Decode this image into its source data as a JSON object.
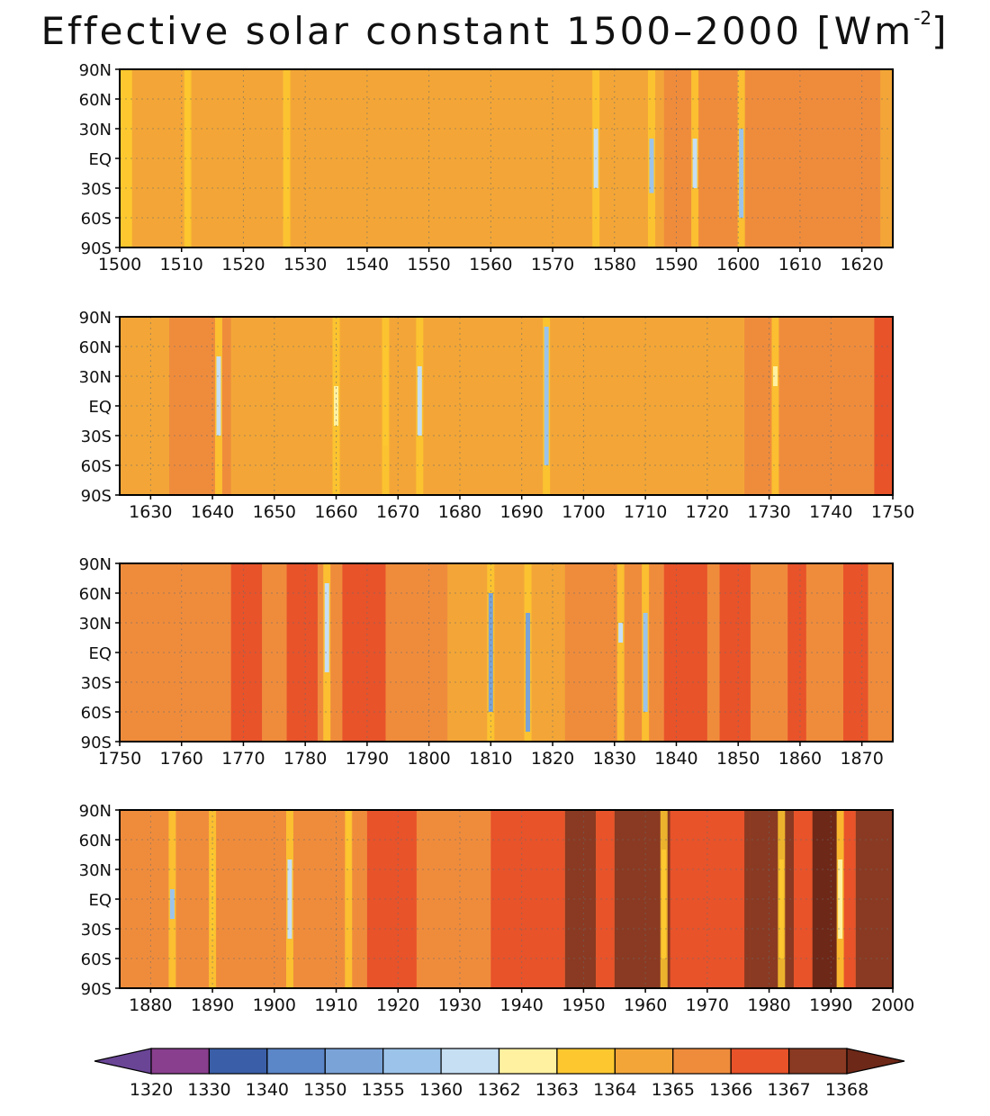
{
  "title": {
    "main": "Effective solar constant 1500–2000 [Wm",
    "unit_sup": "-2",
    "unit_close": "]"
  },
  "colors": {
    "levels": [
      "#6a4596",
      "#8a3f8e",
      "#3a5fa8",
      "#5b86c8",
      "#7aa3d8",
      "#9cc4ea",
      "#c6dff3",
      "#fff1a0",
      "#fdc82f",
      "#f3a637",
      "#ef8c3c",
      "#e8532a",
      "#8a3a22",
      "#6e2818"
    ],
    "frame": "#000000",
    "grid": "#6a6a6a"
  },
  "colorbar": {
    "labels": [
      "1320",
      "1330",
      "1340",
      "1350",
      "1355",
      "1360",
      "1362",
      "1363",
      "1364",
      "1365",
      "1366",
      "1367",
      "1368"
    ],
    "extend": "both"
  },
  "chart_data": [
    {
      "type": "heatmap",
      "x_range": [
        1500,
        1625
      ],
      "x_ticks": [
        1500,
        1510,
        1520,
        1530,
        1540,
        1550,
        1560,
        1570,
        1580,
        1590,
        1600,
        1610,
        1620
      ],
      "x_tick_labels": [
        "1500",
        "1510",
        "1520",
        "1530",
        "1540",
        "1550",
        "1560",
        "1570",
        "1580",
        "1590",
        "1600",
        "1610",
        "1620"
      ],
      "y_tick_labels": [
        "90N",
        "60N",
        "30N",
        "EQ",
        "30S",
        "60S",
        "90S"
      ],
      "y_range": [
        -90,
        90
      ],
      "grid": true,
      "base_value": 1364.5,
      "bands": [
        {
          "from": 1500,
          "to": 1502,
          "value": 1363.5
        },
        {
          "from": 1588,
          "to": 1623,
          "value": 1365.5
        },
        {
          "from": 1623,
          "to": 1625,
          "value": 1364.5
        }
      ],
      "events": [
        {
          "year": 1501,
          "lat_min": -60,
          "lat_max": 20,
          "value": 1363
        },
        {
          "year": 1511,
          "lat_min": -90,
          "lat_max": 90,
          "value": 1363.5
        },
        {
          "year": 1527,
          "lat_min": -60,
          "lat_max": 0,
          "value": 1363.5
        },
        {
          "year": 1577,
          "lat_min": -30,
          "lat_max": 30,
          "value": 1361
        },
        {
          "year": 1586,
          "lat_min": -35,
          "lat_max": 20,
          "value": 1359
        },
        {
          "year": 1593,
          "lat_min": -30,
          "lat_max": 20,
          "value": 1361
        },
        {
          "year": 1600.5,
          "lat_min": -60,
          "lat_max": 30,
          "value": 1359
        }
      ]
    },
    {
      "type": "heatmap",
      "x_range": [
        1625,
        1750
      ],
      "x_ticks": [
        1630,
        1640,
        1650,
        1660,
        1670,
        1680,
        1690,
        1700,
        1710,
        1720,
        1730,
        1740,
        1750
      ],
      "x_tick_labels": [
        "1630",
        "1640",
        "1650",
        "1660",
        "1670",
        "1680",
        "1690",
        "1700",
        "1710",
        "1720",
        "1730",
        "1740",
        "1750"
      ],
      "y_tick_labels": [
        "90N",
        "60N",
        "30N",
        "EQ",
        "30S",
        "60S",
        "90S"
      ],
      "y_range": [
        -90,
        90
      ],
      "grid": true,
      "base_value": 1364.5,
      "bands": [
        {
          "from": 1633,
          "to": 1643,
          "value": 1365.5
        },
        {
          "from": 1726,
          "to": 1747,
          "value": 1365.5
        },
        {
          "from": 1747,
          "to": 1750,
          "value": 1366.5
        }
      ],
      "events": [
        {
          "year": 1641,
          "lat_min": -30,
          "lat_max": 50,
          "value": 1361
        },
        {
          "year": 1660,
          "lat_min": -20,
          "lat_max": 20,
          "value": 1362
        },
        {
          "year": 1668,
          "lat_min": -40,
          "lat_max": 60,
          "value": 1363
        },
        {
          "year": 1673.5,
          "lat_min": -30,
          "lat_max": 40,
          "value": 1360
        },
        {
          "year": 1694,
          "lat_min": -60,
          "lat_max": 80,
          "value": 1359
        },
        {
          "year": 1731,
          "lat_min": 20,
          "lat_max": 40,
          "value": 1362
        }
      ]
    },
    {
      "type": "heatmap",
      "x_range": [
        1750,
        1875
      ],
      "x_ticks": [
        1750,
        1760,
        1770,
        1780,
        1790,
        1800,
        1810,
        1820,
        1830,
        1840,
        1850,
        1860,
        1870
      ],
      "x_tick_labels": [
        "1750",
        "1760",
        "1770",
        "1780",
        "1790",
        "1800",
        "1810",
        "1820",
        "1830",
        "1840",
        "1850",
        "1860",
        "1870"
      ],
      "y_tick_labels": [
        "90N",
        "60N",
        "30N",
        "EQ",
        "30S",
        "60S",
        "90S"
      ],
      "y_range": [
        -90,
        90
      ],
      "grid": true,
      "base_value": 1365.5,
      "bands": [
        {
          "from": 1768,
          "to": 1773,
          "value": 1366.5
        },
        {
          "from": 1777,
          "to": 1782,
          "value": 1366.5
        },
        {
          "from": 1786,
          "to": 1793,
          "value": 1366.5
        },
        {
          "from": 1803,
          "to": 1822,
          "value": 1364.5
        },
        {
          "from": 1838,
          "to": 1845,
          "value": 1366.5
        },
        {
          "from": 1847,
          "to": 1852,
          "value": 1366.5
        },
        {
          "from": 1858,
          "to": 1861,
          "value": 1366.5
        },
        {
          "from": 1867,
          "to": 1871,
          "value": 1366.5
        }
      ],
      "events": [
        {
          "year": 1783.5,
          "lat_min": -20,
          "lat_max": 70,
          "value": 1360
        },
        {
          "year": 1810,
          "lat_min": -60,
          "lat_max": 60,
          "value": 1354
        },
        {
          "year": 1816,
          "lat_min": -80,
          "lat_max": 40,
          "value": 1352
        },
        {
          "year": 1831,
          "lat_min": 10,
          "lat_max": 30,
          "value": 1361
        },
        {
          "year": 1835,
          "lat_min": -60,
          "lat_max": 40,
          "value": 1358
        }
      ]
    },
    {
      "type": "heatmap",
      "x_range": [
        1875,
        2000
      ],
      "x_ticks": [
        1880,
        1890,
        1900,
        1910,
        1920,
        1930,
        1940,
        1950,
        1960,
        1970,
        1980,
        1990,
        2000
      ],
      "x_tick_labels": [
        "1880",
        "1890",
        "1900",
        "1910",
        "1920",
        "1930",
        "1940",
        "1950",
        "1960",
        "1970",
        "1980",
        "1990",
        "2000"
      ],
      "y_tick_labels": [
        "90N",
        "60N",
        "30N",
        "EQ",
        "30S",
        "60S",
        "90S"
      ],
      "y_range": [
        -90,
        90
      ],
      "grid": true,
      "base_value": 1365.5,
      "bands": [
        {
          "from": 1915,
          "to": 1923,
          "value": 1366.5
        },
        {
          "from": 1935,
          "to": 1947,
          "value": 1366.5
        },
        {
          "from": 1947,
          "to": 1952,
          "value": 1367.5
        },
        {
          "from": 1952,
          "to": 1955,
          "value": 1366.5
        },
        {
          "from": 1955,
          "to": 1977,
          "value": 1367.5
        },
        {
          "from": 1964,
          "to": 1976,
          "value": 1366.5
        },
        {
          "from": 1977,
          "to": 1984,
          "value": 1367.5
        },
        {
          "from": 1984,
          "to": 1987,
          "value": 1366.5
        },
        {
          "from": 1987,
          "to": 1991,
          "value": 1368.5
        },
        {
          "from": 1991,
          "to": 1994,
          "value": 1366.5
        },
        {
          "from": 1994,
          "to": 2000,
          "value": 1367.5
        }
      ],
      "events": [
        {
          "year": 1883.5,
          "lat_min": -20,
          "lat_max": 10,
          "value": 1359
        },
        {
          "year": 1890,
          "lat_min": -40,
          "lat_max": 50,
          "value": 1363.5
        },
        {
          "year": 1902.5,
          "lat_min": -40,
          "lat_max": 40,
          "value": 1360
        },
        {
          "year": 1912,
          "lat_min": 30,
          "lat_max": 90,
          "value": 1363
        },
        {
          "year": 1963,
          "lat_min": -60,
          "lat_max": 50,
          "value": 1363.5
        },
        {
          "year": 1982,
          "lat_min": -60,
          "lat_max": 40,
          "value": 1363.5
        },
        {
          "year": 1991.5,
          "lat_min": -40,
          "lat_max": 40,
          "value": 1362
        }
      ]
    }
  ]
}
